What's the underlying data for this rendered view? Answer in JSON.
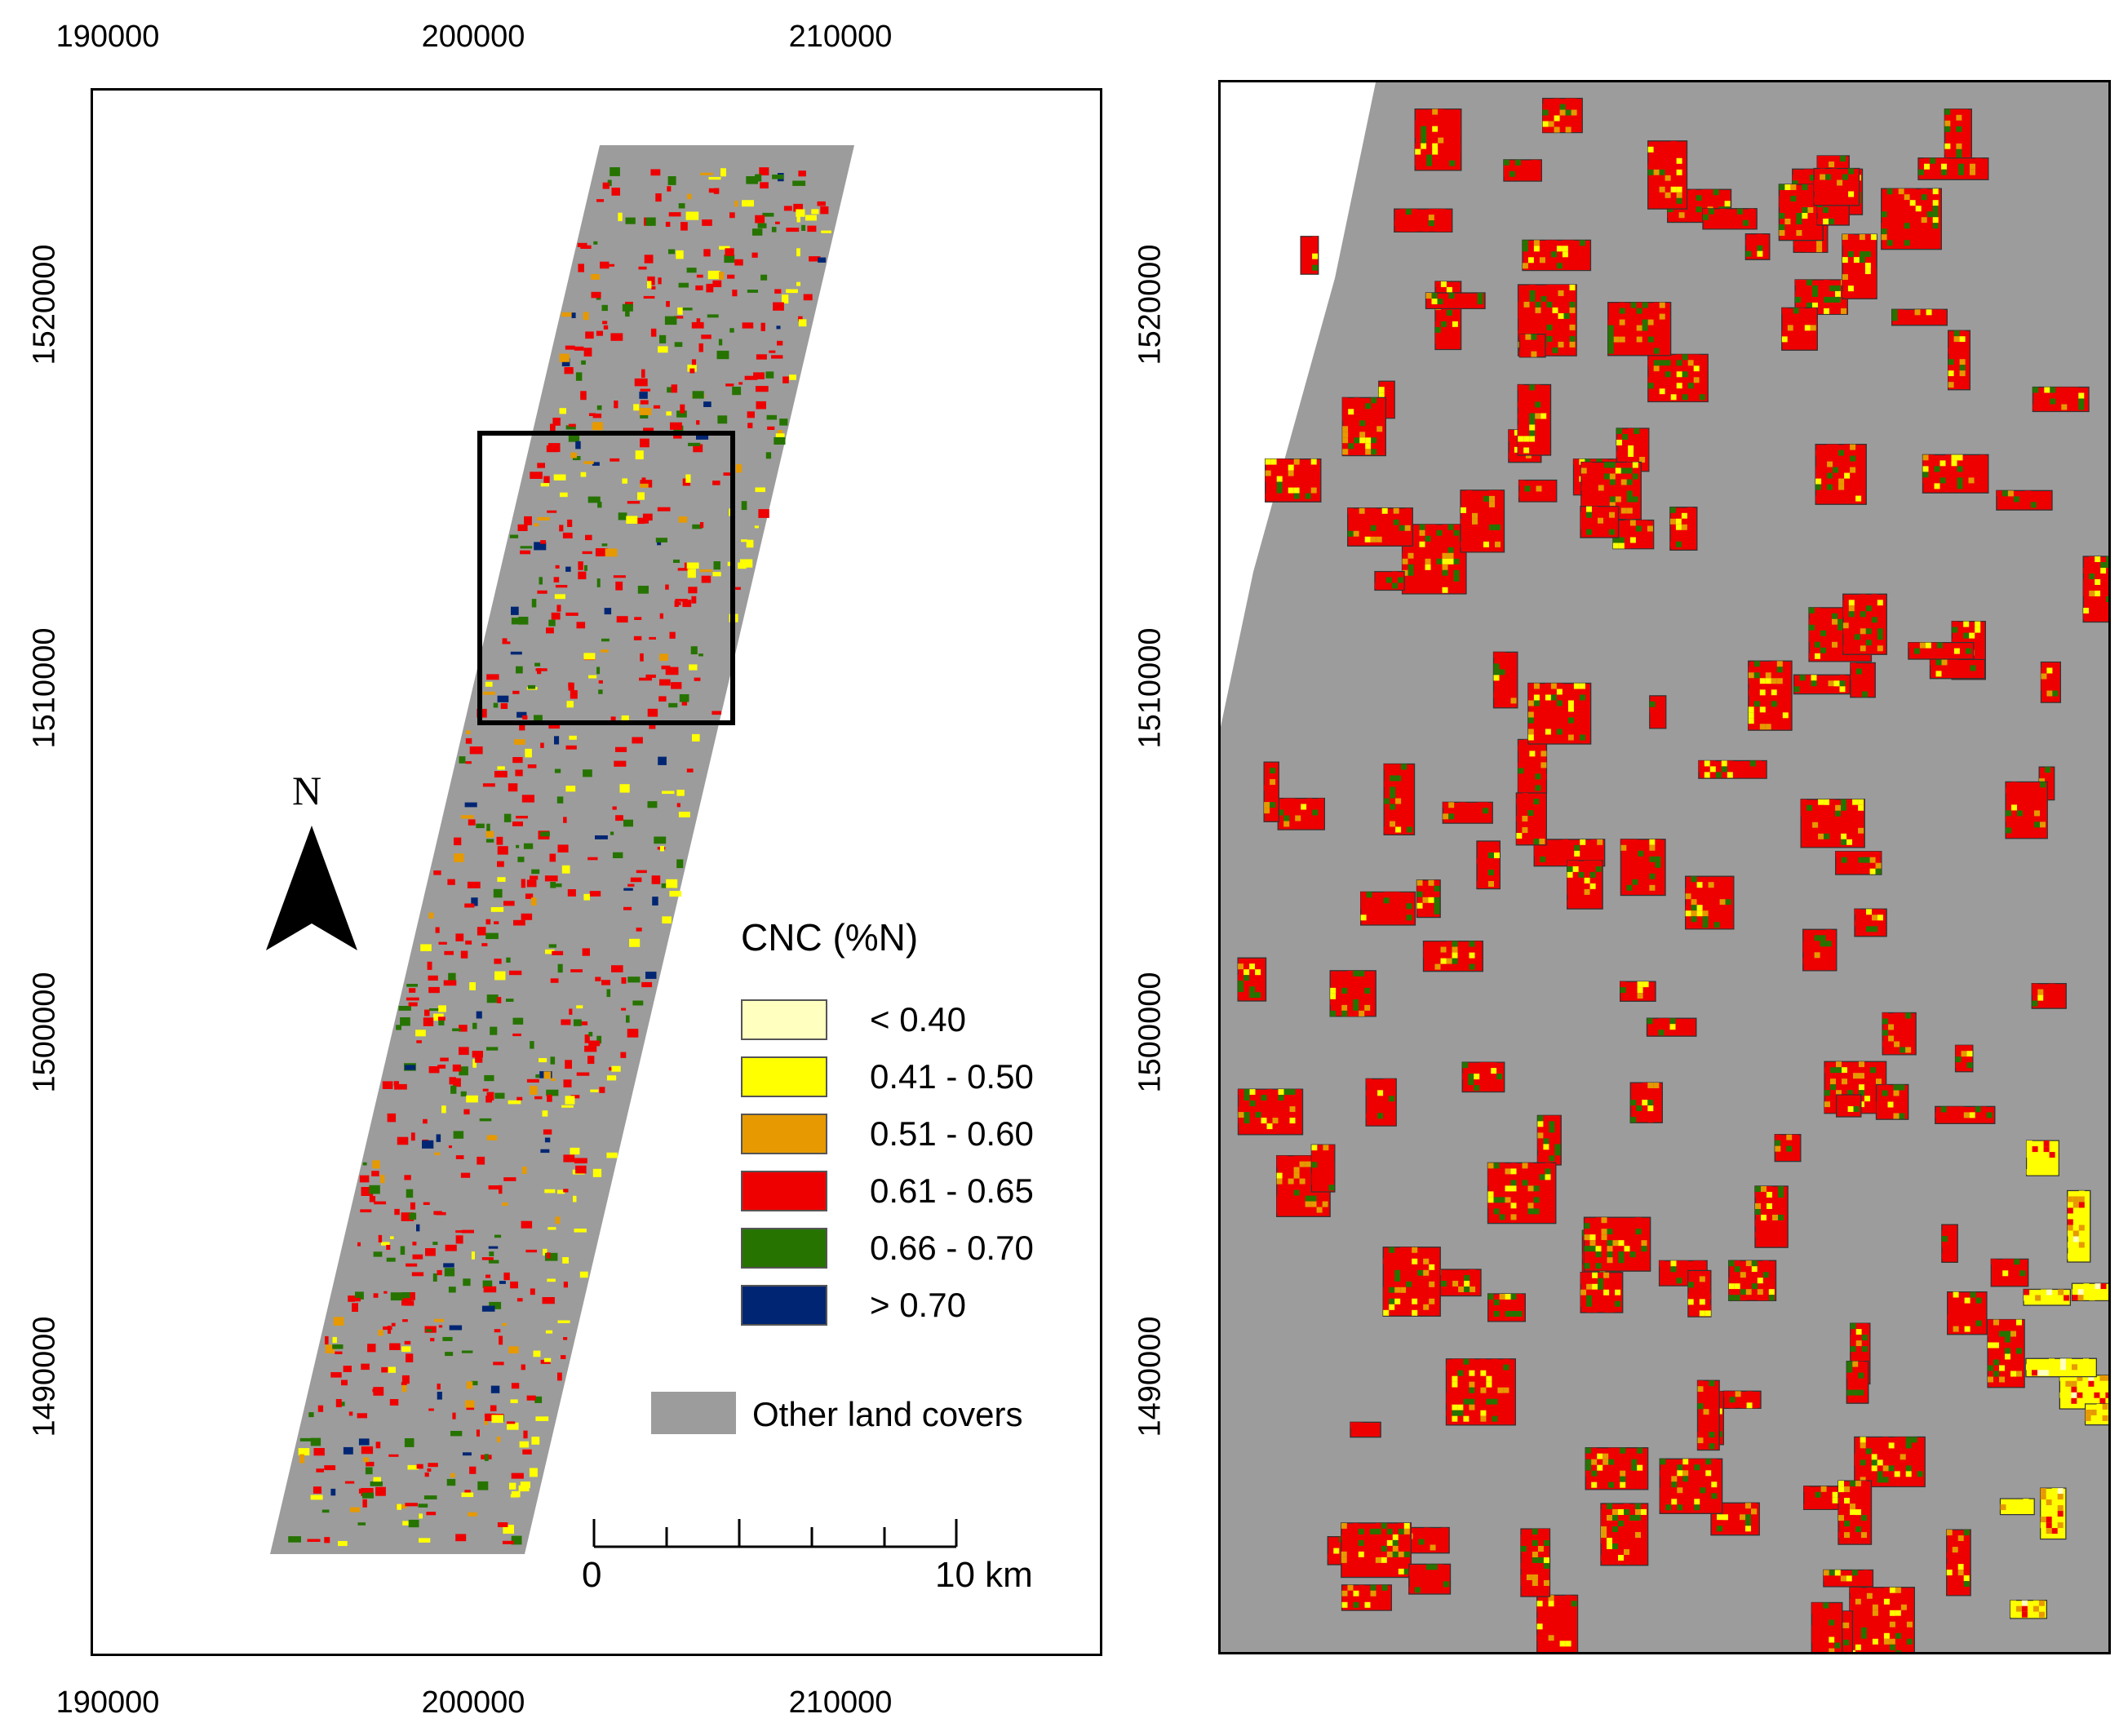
{
  "left_map": {
    "x_ticks_top": [
      "190000",
      "200000",
      "210000"
    ],
    "x_ticks_bottom": [
      "190000",
      "200000",
      "210000"
    ],
    "y_ticks": [
      "1520000",
      "1510000",
      "1500000",
      "1490000"
    ],
    "north_label": "N",
    "legend": {
      "title": "CNC (%N)",
      "classes": [
        {
          "label": "< 0.40",
          "color": "#ffffc0"
        },
        {
          "label": "0.41 - 0.50",
          "color": "#ffff00"
        },
        {
          "label": "0.51 - 0.60",
          "color": "#e69900"
        },
        {
          "label": "0.61 - 0.65",
          "color": "#ee0000"
        },
        {
          "label": "0.66 - 0.70",
          "color": "#267300"
        },
        {
          "label": "> 0.70",
          "color": "#002673"
        }
      ],
      "other": {
        "label": "Other land covers",
        "color": "#9c9c9c"
      }
    },
    "scale_bar": {
      "start_label": "0",
      "end_label": "10 km"
    }
  },
  "right_map": {
    "y_ticks": [
      "1520000",
      "1510000",
      "1500000",
      "1490000"
    ]
  }
}
